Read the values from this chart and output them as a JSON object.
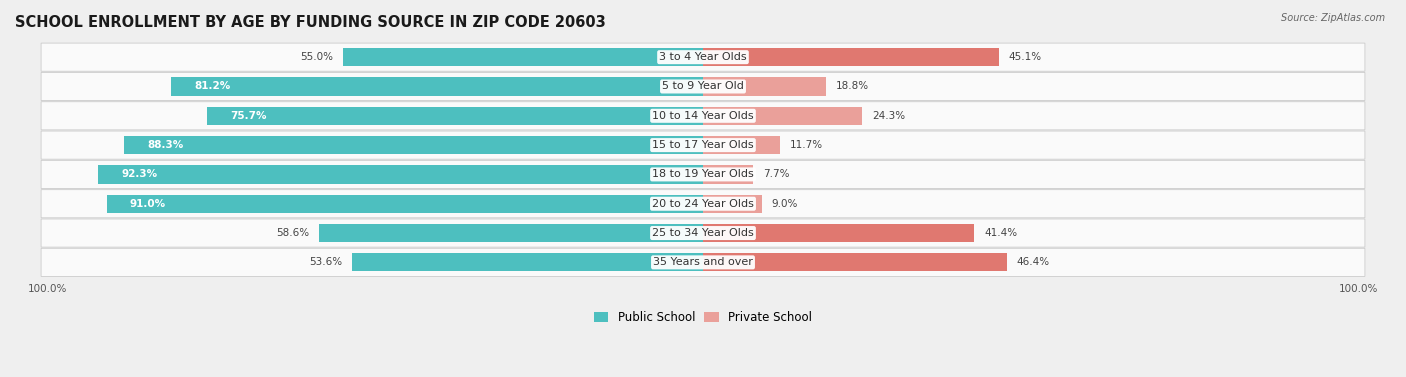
{
  "title": "SCHOOL ENROLLMENT BY AGE BY FUNDING SOURCE IN ZIP CODE 20603",
  "source": "Source: ZipAtlas.com",
  "categories": [
    "3 to 4 Year Olds",
    "5 to 9 Year Old",
    "10 to 14 Year Olds",
    "15 to 17 Year Olds",
    "18 to 19 Year Olds",
    "20 to 24 Year Olds",
    "25 to 34 Year Olds",
    "35 Years and over"
  ],
  "public_values": [
    55.0,
    81.2,
    75.7,
    88.3,
    92.3,
    91.0,
    58.6,
    53.6
  ],
  "private_values": [
    45.1,
    18.8,
    24.3,
    11.7,
    7.7,
    9.0,
    41.4,
    46.4
  ],
  "public_color": "#4DBFBF",
  "private_color": "#E07870",
  "private_color_light": "#EAA09A",
  "bg_color": "#EFEFEF",
  "row_bg_color": "#FAFAFA",
  "title_fontsize": 10.5,
  "label_fontsize": 8.0,
  "bar_label_fontsize": 7.5,
  "legend_fontsize": 8.5,
  "axis_label_fontsize": 7.5
}
